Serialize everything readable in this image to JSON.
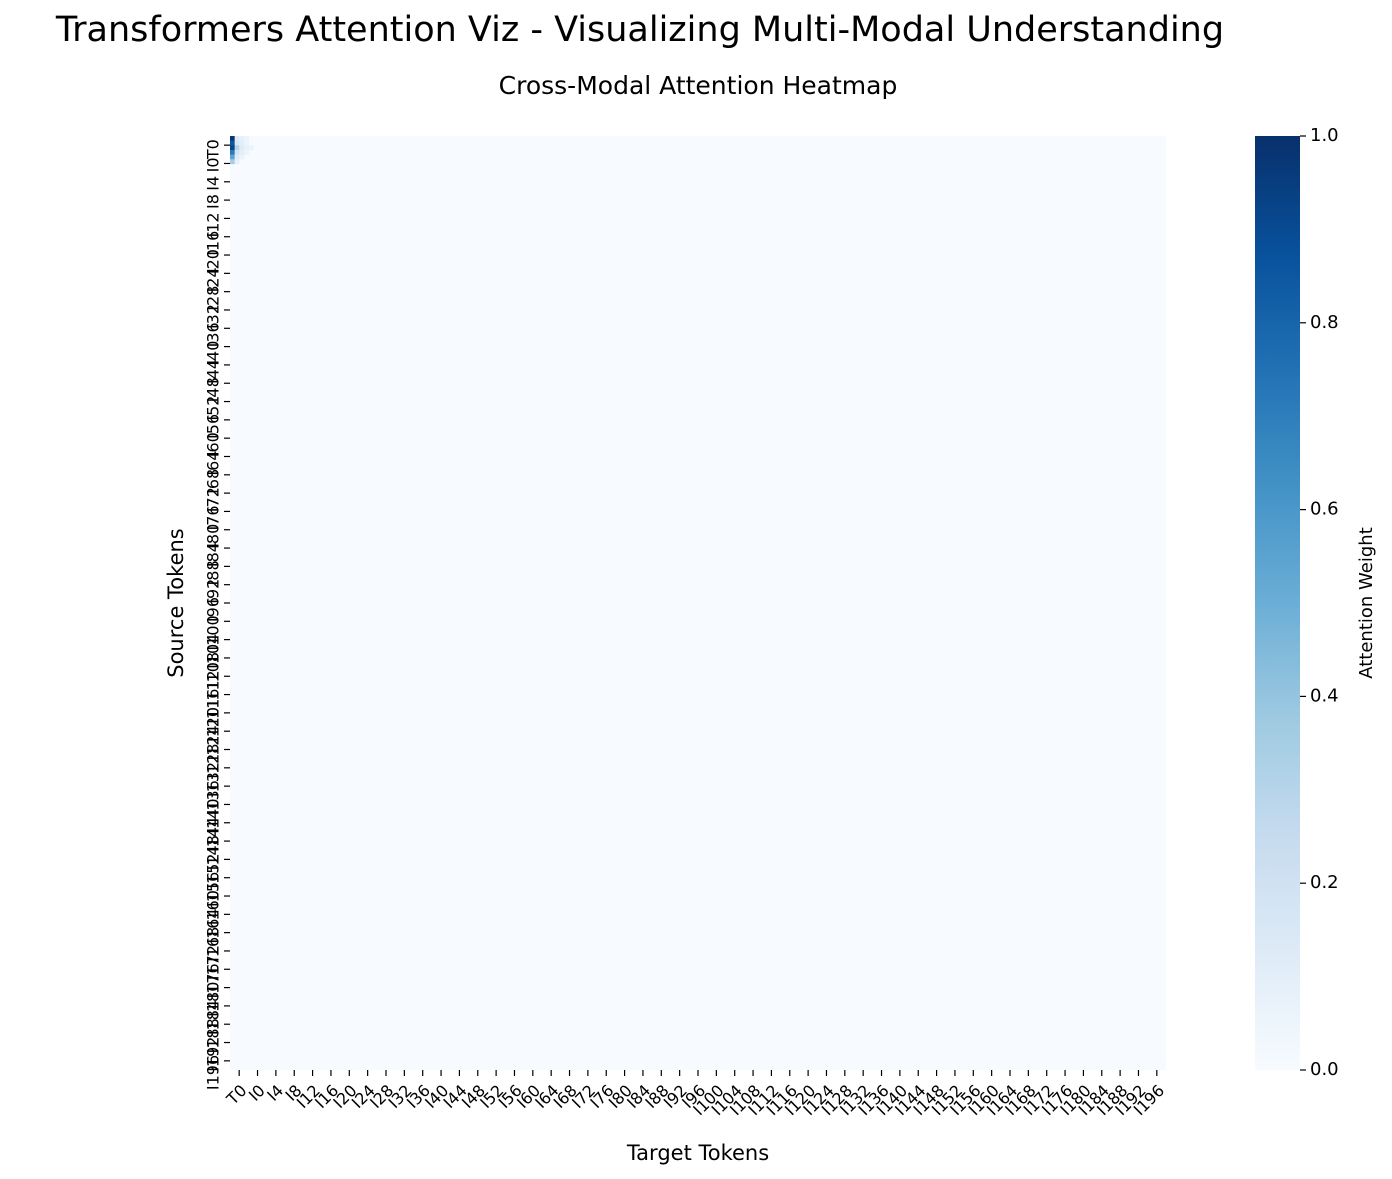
{
  "figure": {
    "suptitle": "Transformers Attention Viz - Visualizing Multi-Modal Understanding"
  },
  "chart_data": {
    "type": "heatmap",
    "title": "Cross-Modal Attention Heatmap",
    "xlabel": "Target Tokens",
    "ylabel": "Source Tokens",
    "colormap": "Blues",
    "colorbar": {
      "label": "Attention Weight",
      "range": [
        0,
        1
      ],
      "ticks": [
        "0.0",
        "0.2",
        "0.4",
        "0.6",
        "0.8",
        "1.0"
      ]
    },
    "x_tick_labels": [
      "T0",
      "I0",
      "I4",
      "I8",
      "I12",
      "I16",
      "I20",
      "I24",
      "I28",
      "I32",
      "I36",
      "I40",
      "I44",
      "I48",
      "I52",
      "I56",
      "I60",
      "I64",
      "I68",
      "I72",
      "I76",
      "I80",
      "I84",
      "I88",
      "I92",
      "I96",
      "I100",
      "I104",
      "I108",
      "I112",
      "I116",
      "I120",
      "I124",
      "I128",
      "I132",
      "I136",
      "I140",
      "I144",
      "I148",
      "I152",
      "I156",
      "I160",
      "I164",
      "I168",
      "I172",
      "I176",
      "I180",
      "I184",
      "I188",
      "I192",
      "I196"
    ],
    "y_tick_labels": [
      "T0",
      "I0",
      "I4",
      "I8",
      "I12",
      "I16",
      "I20",
      "I24",
      "I28",
      "I32",
      "I36",
      "I40",
      "I44",
      "I48",
      "I52",
      "I56",
      "I60",
      "I64",
      "I68",
      "I72",
      "I76",
      "I80",
      "I84",
      "I88",
      "I92",
      "I96",
      "I100",
      "I104",
      "I108",
      "I112",
      "I116",
      "I120",
      "I124",
      "I128",
      "I132",
      "I136",
      "I140",
      "I144",
      "I148",
      "I152",
      "I156",
      "I160",
      "I164",
      "I168",
      "I172",
      "I176",
      "I180",
      "I184",
      "I188",
      "I192",
      "I196"
    ],
    "grid_size": 201,
    "nonzero_cells": [
      {
        "row": 0,
        "col": 0,
        "value": 0.98
      },
      {
        "row": 0,
        "col": 1,
        "value": 0.12
      },
      {
        "row": 0,
        "col": 2,
        "value": 0.08
      },
      {
        "row": 0,
        "col": 3,
        "value": 0.05
      },
      {
        "row": 1,
        "col": 0,
        "value": 0.85
      },
      {
        "row": 1,
        "col": 1,
        "value": 0.15
      },
      {
        "row": 1,
        "col": 2,
        "value": 0.1
      },
      {
        "row": 1,
        "col": 3,
        "value": 0.06
      },
      {
        "row": 2,
        "col": 0,
        "value": 0.92
      },
      {
        "row": 2,
        "col": 1,
        "value": 0.3
      },
      {
        "row": 2,
        "col": 2,
        "value": 0.12
      },
      {
        "row": 2,
        "col": 3,
        "value": 0.08
      },
      {
        "row": 2,
        "col": 4,
        "value": 0.06
      },
      {
        "row": 3,
        "col": 0,
        "value": 0.72
      },
      {
        "row": 3,
        "col": 1,
        "value": 0.18
      },
      {
        "row": 3,
        "col": 2,
        "value": 0.1
      },
      {
        "row": 3,
        "col": 3,
        "value": 0.05
      },
      {
        "row": 4,
        "col": 0,
        "value": 0.55
      },
      {
        "row": 4,
        "col": 1,
        "value": 0.12
      },
      {
        "row": 4,
        "col": 2,
        "value": 0.06
      },
      {
        "row": 5,
        "col": 0,
        "value": 0.35
      },
      {
        "row": 5,
        "col": 1,
        "value": 0.08
      }
    ]
  }
}
